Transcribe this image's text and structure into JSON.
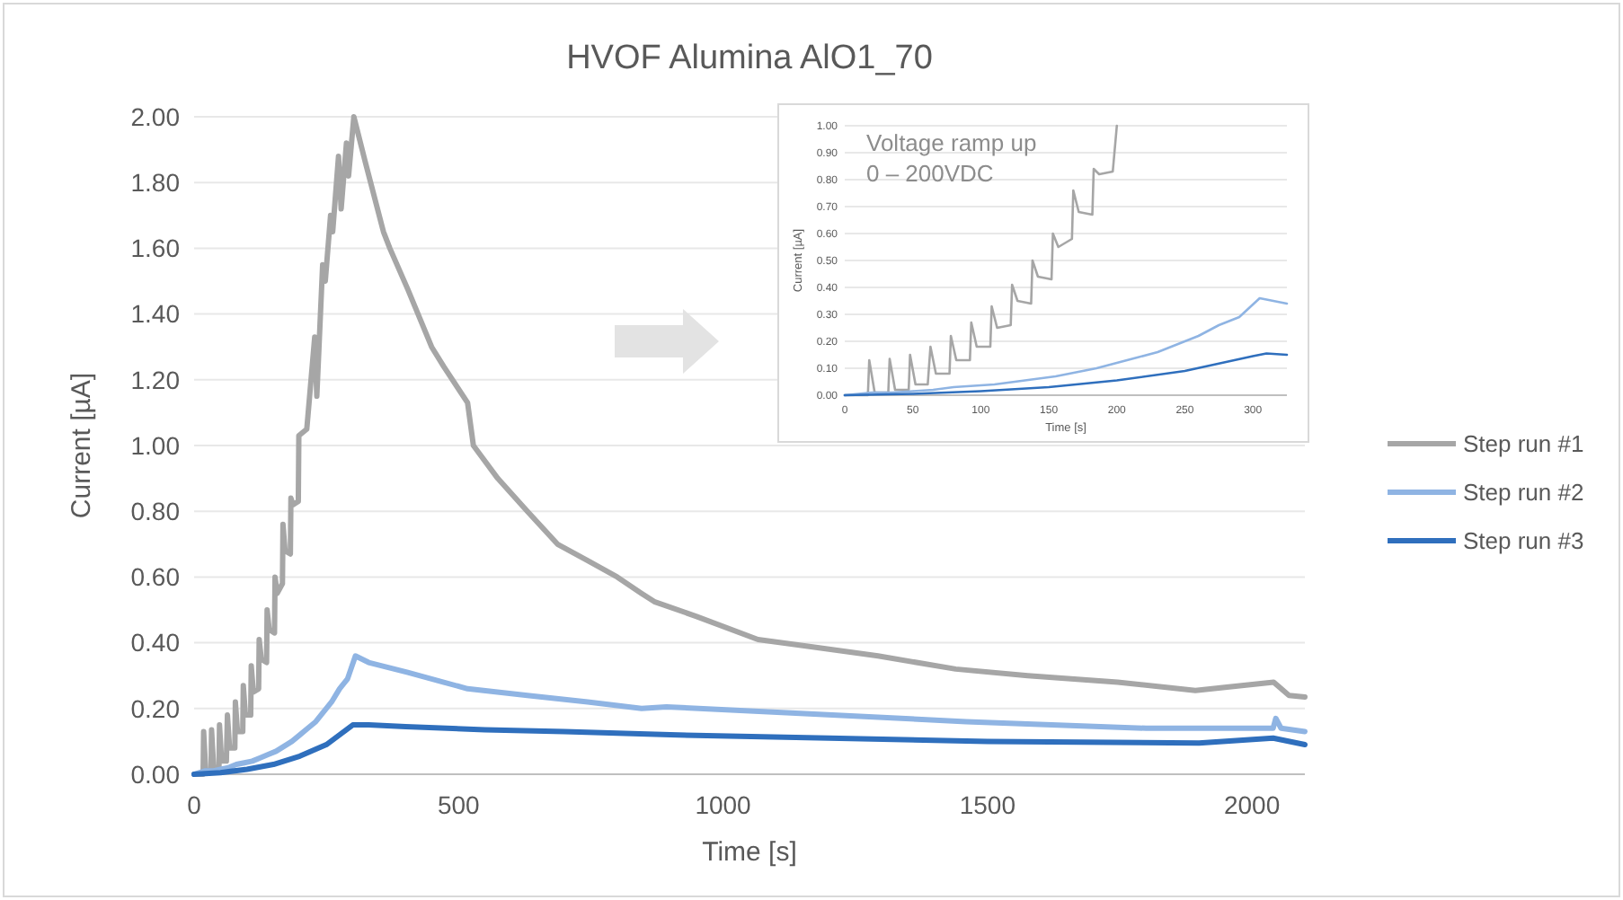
{
  "chart_data": [
    {
      "type": "line",
      "title": "HVOF Alumina AlO1_70",
      "xlabel": "Time [s]",
      "ylabel": "Current [µA]",
      "xlim": [
        0,
        2100
      ],
      "xticks": [
        0,
        500,
        1000,
        1500,
        2000
      ],
      "ylim": [
        0,
        2
      ],
      "yticks": [
        {
          "value": 0,
          "label": "0.00"
        },
        {
          "value": 0.2,
          "label": "0.20"
        },
        {
          "value": 0.4,
          "label": "0.40"
        },
        {
          "value": 0.6,
          "label": "0.60"
        },
        {
          "value": 0.8,
          "label": "0.80"
        },
        {
          "value": 1,
          "label": "1.00"
        },
        {
          "value": 1.2,
          "label": "1.20"
        },
        {
          "value": 1.4,
          "label": "1.40"
        },
        {
          "value": 1.6,
          "label": "1.60"
        },
        {
          "value": 1.8,
          "label": "1.80"
        },
        {
          "value": 2,
          "label": "2.00"
        }
      ],
      "grid": "y",
      "legend": "right",
      "series": [
        {
          "name": "Step run #1",
          "color": "#a6a6a6",
          "x": [
            0,
            17,
            18,
            22,
            32,
            33,
            37,
            47,
            48,
            52,
            61,
            63,
            67,
            77,
            78,
            82,
            92,
            93,
            97,
            107,
            108,
            112,
            122,
            123,
            127,
            137,
            138,
            142,
            152,
            153,
            157,
            167,
            168,
            172,
            182,
            183,
            187,
            197,
            198,
            213,
            228,
            232,
            243,
            248,
            258,
            262,
            273,
            278,
            288,
            292,
            302,
            324,
            358,
            370,
            404,
            449,
            472,
            517,
            528,
            574,
            630,
            687,
            744,
            800,
            846,
            870,
            950,
            1066,
            1157,
            1293,
            1440,
            1576,
            1746,
            1893,
            2041,
            2070,
            2100
          ],
          "values": [
            0,
            0,
            0.13,
            0.01,
            0.01,
            0.135,
            0.02,
            0.02,
            0.15,
            0.04,
            0.04,
            0.18,
            0.08,
            0.08,
            0.22,
            0.13,
            0.13,
            0.27,
            0.18,
            0.18,
            0.33,
            0.25,
            0.26,
            0.41,
            0.35,
            0.34,
            0.5,
            0.44,
            0.43,
            0.6,
            0.55,
            0.58,
            0.76,
            0.68,
            0.67,
            0.84,
            0.82,
            0.83,
            1.03,
            1.05,
            1.33,
            1.15,
            1.55,
            1.5,
            1.7,
            1.65,
            1.88,
            1.72,
            1.92,
            1.82,
            2.0,
            1.86,
            1.65,
            1.6,
            1.475,
            1.3,
            1.24,
            1.13,
            1.0,
            0.9,
            0.8,
            0.7,
            0.65,
            0.6,
            0.55,
            0.525,
            0.48,
            0.41,
            0.39,
            0.36,
            0.32,
            0.3,
            0.28,
            0.255,
            0.28,
            0.24,
            0.235
          ]
        },
        {
          "name": "Step run #2",
          "color": "#8fb4e3",
          "x": [
            0,
            20,
            35,
            50,
            65,
            80,
            95,
            110,
            125,
            140,
            155,
            170,
            185,
            200,
            215,
            230,
            245,
            260,
            275,
            290,
            305,
            330,
            404,
            517,
            630,
            744,
            846,
            893,
            1120,
            1460,
            1800,
            2040,
            2045,
            2055,
            2100
          ],
          "values": [
            0,
            0.01,
            0.01,
            0.015,
            0.02,
            0.03,
            0.035,
            0.04,
            0.05,
            0.06,
            0.07,
            0.085,
            0.1,
            0.12,
            0.14,
            0.16,
            0.19,
            0.22,
            0.26,
            0.29,
            0.36,
            0.34,
            0.31,
            0.26,
            0.24,
            0.22,
            0.2,
            0.205,
            0.187,
            0.16,
            0.14,
            0.14,
            0.17,
            0.14,
            0.13
          ]
        },
        {
          "name": "Step run #3",
          "color": "#2f6fbd",
          "x": [
            0,
            50,
            100,
            150,
            200,
            250,
            300,
            330,
            400,
            550,
            700,
            900,
            1200,
            1500,
            1900,
            2040,
            2100
          ],
          "values": [
            0,
            0.005,
            0.015,
            0.03,
            0.055,
            0.09,
            0.15,
            0.15,
            0.145,
            0.135,
            0.13,
            0.12,
            0.11,
            0.1,
            0.095,
            0.11,
            0.09
          ]
        }
      ]
    },
    {
      "type": "line",
      "xlabel": "Time [s]",
      "ylabel": "Current [µA]",
      "annotations": [
        "Voltage ramp up\n0 – 200VDC"
      ],
      "xlim": [
        0,
        325
      ],
      "xticks": [
        0,
        50,
        100,
        150,
        200,
        250,
        300
      ],
      "ylim": [
        0,
        1
      ],
      "yticks": [
        {
          "value": 0,
          "label": "0.00"
        },
        {
          "value": 0.1,
          "label": "0.10"
        },
        {
          "value": 0.2,
          "label": "0.20"
        },
        {
          "value": 0.3,
          "label": "0.30"
        },
        {
          "value": 0.4,
          "label": "0.40"
        },
        {
          "value": 0.5,
          "label": "0.50"
        },
        {
          "value": 0.6,
          "label": "0.60"
        },
        {
          "value": 0.7,
          "label": "0.70"
        },
        {
          "value": 0.8,
          "label": "0.80"
        },
        {
          "value": 0.9,
          "label": "0.90"
        },
        {
          "value": 1,
          "label": "1.00"
        }
      ],
      "grid": "y",
      "series": [
        {
          "color": "#a6a6a6",
          "x": [
            0,
            17,
            18,
            22,
            32,
            33,
            37,
            47,
            48,
            52,
            61,
            63,
            67,
            77,
            78,
            82,
            92,
            93,
            97,
            107,
            108,
            112,
            122,
            123,
            127,
            137,
            138,
            142,
            152,
            153,
            157,
            167,
            168,
            172,
            182,
            183,
            187,
            197,
            200
          ],
          "values": [
            0,
            0,
            0.13,
            0.01,
            0.01,
            0.135,
            0.02,
            0.02,
            0.15,
            0.04,
            0.04,
            0.18,
            0.08,
            0.08,
            0.22,
            0.13,
            0.13,
            0.27,
            0.18,
            0.18,
            0.33,
            0.25,
            0.26,
            0.41,
            0.35,
            0.34,
            0.5,
            0.44,
            0.43,
            0.6,
            0.55,
            0.58,
            0.76,
            0.68,
            0.67,
            0.84,
            0.82,
            0.83,
            1.0
          ]
        },
        {
          "color": "#8fb4e3",
          "x": [
            0,
            20,
            35,
            50,
            65,
            80,
            95,
            110,
            125,
            140,
            155,
            170,
            185,
            200,
            215,
            230,
            245,
            260,
            275,
            290,
            305,
            325
          ],
          "values": [
            0,
            0.01,
            0.01,
            0.015,
            0.02,
            0.03,
            0.035,
            0.04,
            0.05,
            0.06,
            0.07,
            0.085,
            0.1,
            0.12,
            0.14,
            0.16,
            0.19,
            0.22,
            0.26,
            0.29,
            0.36,
            0.34
          ]
        },
        {
          "color": "#2f6fbd",
          "x": [
            0,
            50,
            100,
            150,
            200,
            250,
            300,
            310,
            325
          ],
          "values": [
            0,
            0.005,
            0.015,
            0.03,
            0.055,
            0.09,
            0.145,
            0.155,
            0.15
          ]
        }
      ]
    }
  ]
}
